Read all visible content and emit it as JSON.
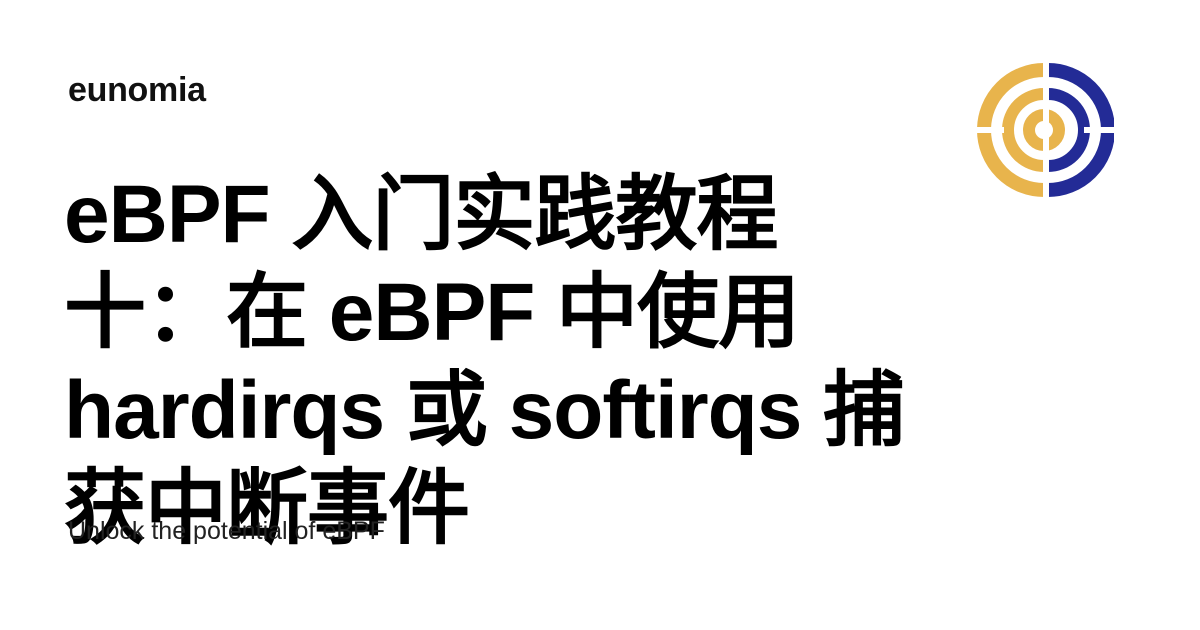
{
  "brand": {
    "name": "eunomia"
  },
  "article": {
    "title": "eBPF 入门实践教程十：在 eBPF 中使用 hardirqs 或 softirqs 捕获中断事件",
    "subtitle": "Unlock the potential of eBPF"
  },
  "logo": {
    "icon": "eunomia-logo-icon",
    "colors": {
      "gold": "#E8B44C",
      "navy": "#232B96"
    }
  }
}
